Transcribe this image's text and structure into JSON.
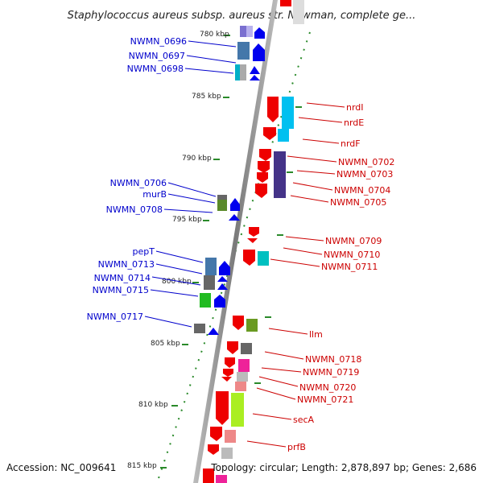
{
  "title": "Staphylococcus aureus subsp. aureus str. Newman, complete ge...",
  "footer": {
    "accession": "Accession: NC_009641",
    "topology": "Topology: circular; Length: 2,878,897 bp; Genes: 2,686"
  },
  "colors": {
    "backbone": "#888888",
    "ticks": "#2a8a2a",
    "left_label": "#0000cc",
    "right_label": "#cc0000"
  },
  "scale_labels": [
    "780 kbp",
    "785 kbp",
    "790 kbp",
    "795 kbp",
    "800 kbp",
    "805 kbp",
    "810 kbp",
    "815 kbp"
  ],
  "left_genes": [
    "NWMN_0696",
    "NWMN_0697",
    "NWMN_0698",
    "NWMN_0706",
    "murB",
    "NWMN_0708",
    "pepT",
    "NWMN_0713",
    "NWMN_0714",
    "NWMN_0715",
    "NWMN_0717"
  ],
  "right_genes": [
    "nrdI",
    "nrdE",
    "nrdF",
    "NWMN_0702",
    "NWMN_0703",
    "NWMN_0704",
    "NWMN_0705",
    "NWMN_0709",
    "NWMN_0710",
    "NWMN_0711",
    "llm",
    "NWMN_0718",
    "NWMN_0719",
    "NWMN_0720",
    "NWMN_0721",
    "secA",
    "prfB"
  ]
}
